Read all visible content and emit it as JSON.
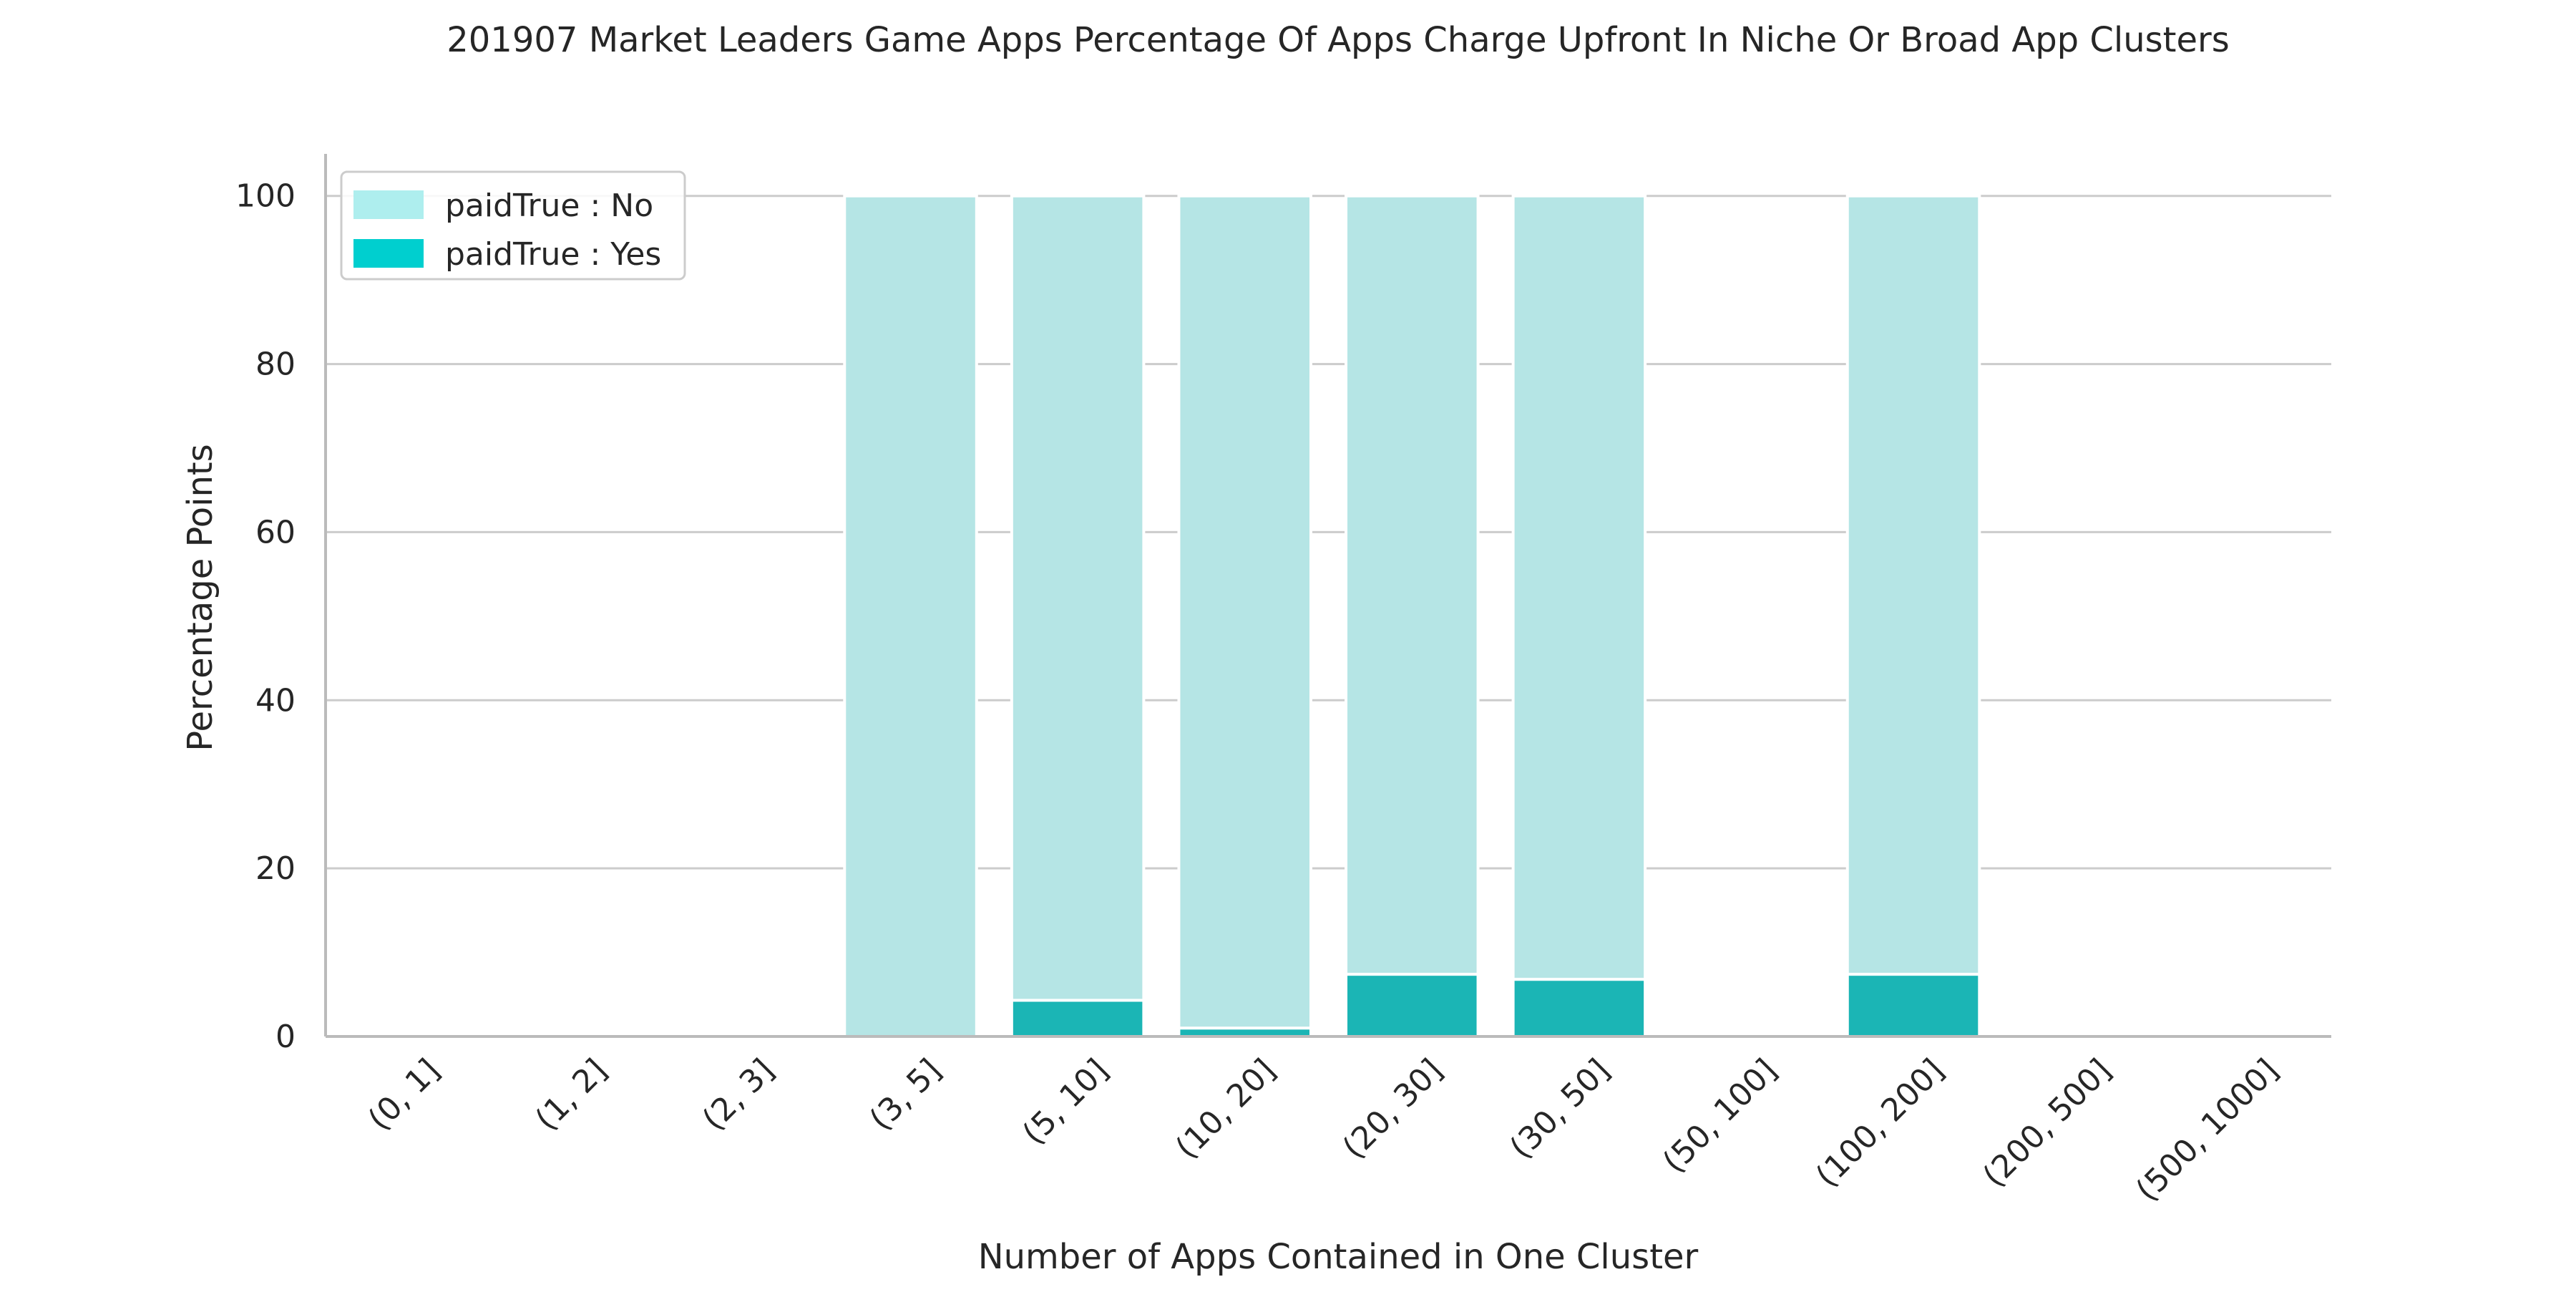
{
  "chart_data": {
    "type": "bar",
    "stacked": true,
    "title": "201907 Market Leaders Game Apps Percentage Of Apps Charge Upfront In Niche Or Broad App Clusters",
    "xlabel": "Number of Apps Contained in One Cluster",
    "ylabel": "Percentage Points",
    "categories": [
      "(0, 1]",
      "(1, 2]",
      "(2, 3]",
      "(3, 5]",
      "(5, 10]",
      "(10, 20]",
      "(20, 30]",
      "(30, 50]",
      "(50, 100]",
      "(100, 200]",
      "(200, 500]",
      "(500, 1000]"
    ],
    "series": [
      {
        "name": "paidTrue : Yes",
        "color": "#1bb5b5",
        "legend_color": "#00cfcf",
        "values": [
          0,
          0,
          0,
          0,
          4.3,
          1.0,
          7.4,
          6.8,
          0,
          7.4,
          0,
          0
        ]
      },
      {
        "name": "paidTrue : No",
        "color": "#b5e5e5",
        "legend_color": "#aeeeee",
        "values": [
          0,
          0,
          0,
          100,
          95.7,
          99.0,
          92.6,
          93.2,
          0,
          92.6,
          0,
          0
        ]
      }
    ],
    "ylim": [
      0,
      105
    ],
    "yticks": [
      0,
      20,
      40,
      60,
      80,
      100
    ],
    "grid": "horizontal",
    "legend_position": "top-left",
    "legend_order": [
      "paidTrue : No",
      "paidTrue : Yes"
    ],
    "gridline_color": "#cccccc",
    "axis_color": "#bbbbbb"
  }
}
